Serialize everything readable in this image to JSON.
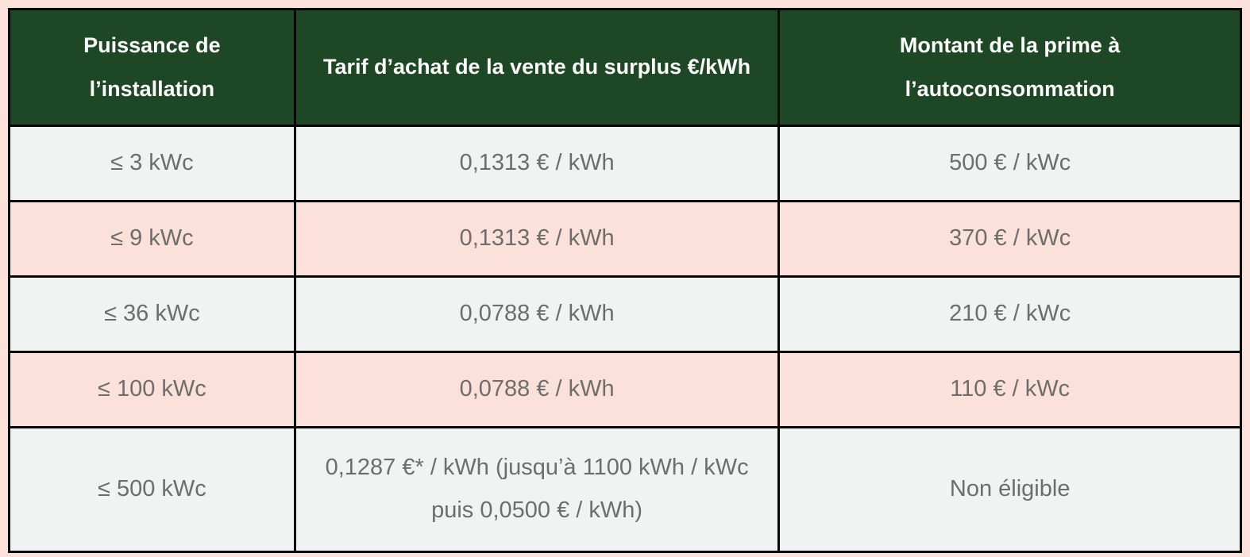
{
  "chart_data": {
    "type": "table",
    "columns": [
      "Puissance de l’installation",
      "Tarif d’achat de la vente du surplus €/kWh",
      "Montant de la prime à l’autoconsommation"
    ],
    "rows": [
      [
        "≤ 3 kWc",
        "0,1313 € / kWh",
        "500 € / kWc"
      ],
      [
        "≤ 9 kWc",
        "0,1313 € / kWh",
        "370 € / kWc"
      ],
      [
        "≤ 36 kWc",
        "0,0788 € / kWh",
        "210 € / kWc"
      ],
      [
        "≤ 100 kWc",
        "0,0788 € / kWh",
        "110 € / kWc"
      ],
      [
        "≤ 500 kWc",
        "0,1287 €* / kWh (jusqu’à 1100 kWh / kWc puis 0,0500 € / kWh)",
        "Non éligible"
      ]
    ],
    "layout": {
      "legend": "none",
      "grid": "full-borders",
      "header_background": "#1e4725",
      "header_text_color": "#fdfdfd",
      "row_colors_alternating": [
        "#f1f2f2",
        "#fbe1d9"
      ],
      "border_color": "#070707",
      "body_text_color": "#6d6d6d",
      "page_background": "#fbe1d9"
    }
  }
}
